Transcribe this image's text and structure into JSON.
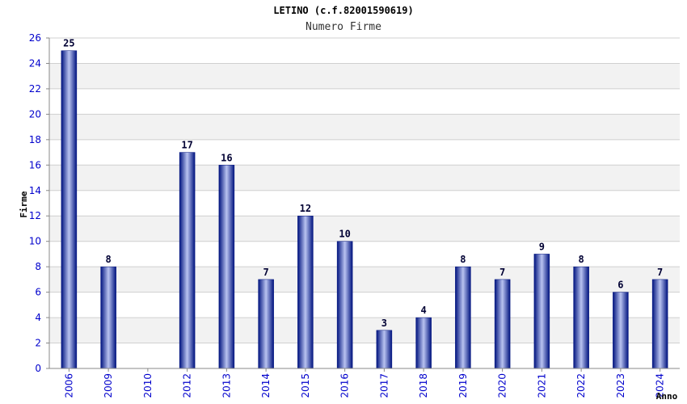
{
  "chart_data": {
    "type": "bar",
    "title": "LETINO (c.f.82001590619)",
    "subtitle": "Numero Firme",
    "xlabel": "Anno",
    "ylabel": "Firme",
    "categories": [
      "2006",
      "2009",
      "2010",
      "2012",
      "2013",
      "2014",
      "2015",
      "2016",
      "2017",
      "2018",
      "2019",
      "2020",
      "2021",
      "2022",
      "2023",
      "2024"
    ],
    "values": [
      25,
      8,
      0,
      17,
      16,
      7,
      12,
      10,
      3,
      4,
      8,
      7,
      9,
      8,
      6,
      7
    ],
    "data_labels": [
      "25",
      "8",
      "",
      "17",
      "16",
      "7",
      "12",
      "10",
      "3",
      "4",
      "8",
      "7",
      "9",
      "8",
      "6",
      "7"
    ],
    "ylim": [
      0,
      26
    ],
    "yticks": [
      0,
      2,
      4,
      6,
      8,
      10,
      12,
      14,
      16,
      18,
      20,
      22,
      24,
      26
    ],
    "grid": true,
    "legend": "none",
    "colors": {
      "bar_dark": "#00137f",
      "bar_light": "#b9c3f0",
      "tick_text": "#0000cc",
      "label_text": "#000033",
      "band": "#f2f2f2",
      "grid": "#d0d0d0"
    }
  }
}
